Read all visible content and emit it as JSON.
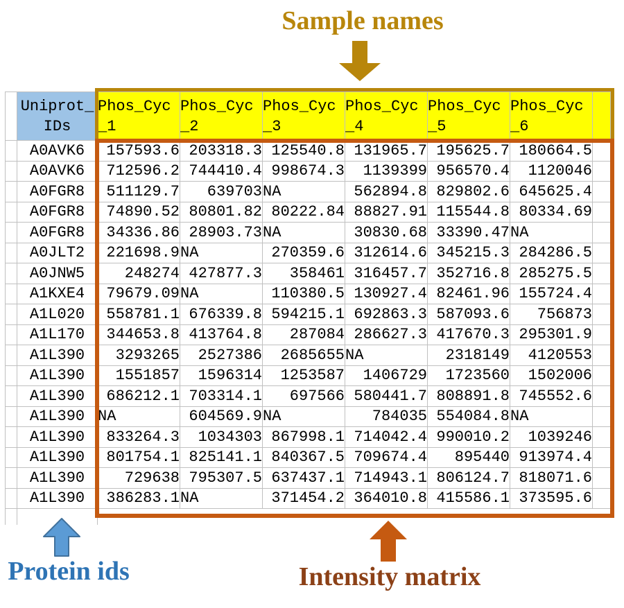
{
  "annotations": {
    "sample_names": {
      "label": "Sample names"
    },
    "protein_ids": {
      "label": "Protein ids"
    },
    "intensity_matrix": {
      "label": "Intensity matrix"
    }
  },
  "table": {
    "id_column_header": {
      "line1": "Uniprot_",
      "line2": "IDs"
    },
    "sample_column_headers": [
      {
        "line1": "Phos_Cyc",
        "line2": "_1"
      },
      {
        "line1": "Phos_Cyc",
        "line2": "_2"
      },
      {
        "line1": "Phos_Cyc",
        "line2": "_3"
      },
      {
        "line1": "Phos_Cyc",
        "line2": "_4"
      },
      {
        "line1": "Phos_Cyc",
        "line2": "_5"
      },
      {
        "line1": "Phos_Cyc",
        "line2": "_6"
      }
    ],
    "na_text": "NA",
    "rows": [
      {
        "id": "A0AVK6",
        "values": [
          "157593.6",
          "203318.3",
          "125540.8",
          "131965.7",
          "195625.7",
          "180664.5"
        ]
      },
      {
        "id": "A0AVK6",
        "values": [
          "712596.2",
          "744410.4",
          "998674.3",
          "1139399",
          "956570.4",
          "1120046"
        ]
      },
      {
        "id": "A0FGR8",
        "values": [
          "511129.7",
          "639703",
          "NA",
          "562894.8",
          "829802.6",
          "645625.4"
        ]
      },
      {
        "id": "A0FGR8",
        "values": [
          "74890.52",
          "80801.82",
          "80222.84",
          "88827.91",
          "115544.8",
          "80334.69"
        ]
      },
      {
        "id": "A0FGR8",
        "values": [
          "34336.86",
          "28903.73",
          "NA",
          "30830.68",
          "33390.47",
          "NA"
        ]
      },
      {
        "id": "A0JLT2",
        "values": [
          "221698.9",
          "NA",
          "270359.6",
          "312614.6",
          "345215.3",
          "284286.5"
        ]
      },
      {
        "id": "A0JNW5",
        "values": [
          "248274",
          "427877.3",
          "358461",
          "316457.7",
          "352716.8",
          "285275.5"
        ]
      },
      {
        "id": "A1KXE4",
        "values": [
          "79679.09",
          "NA",
          "110380.5",
          "130927.4",
          "82461.96",
          "155724.4"
        ]
      },
      {
        "id": "A1L020",
        "values": [
          "558781.1",
          "676339.8",
          "594215.1",
          "692863.3",
          "587093.6",
          "756873"
        ]
      },
      {
        "id": "A1L170",
        "values": [
          "344653.8",
          "413764.8",
          "287084",
          "286627.3",
          "417670.3",
          "295301.9"
        ]
      },
      {
        "id": "A1L390",
        "values": [
          "3293265",
          "2527386",
          "2685655",
          "NA",
          "2318149",
          "4120553"
        ]
      },
      {
        "id": "A1L390",
        "values": [
          "1551857",
          "1596314",
          "1253587",
          "1406729",
          "1723560",
          "1502006"
        ]
      },
      {
        "id": "A1L390",
        "values": [
          "686212.1",
          "703314.1",
          "697566",
          "580441.7",
          "808891.8",
          "745552.6"
        ]
      },
      {
        "id": "A1L390",
        "values": [
          "NA",
          "604569.9",
          "NA",
          "784035",
          "554084.8",
          "NA"
        ]
      },
      {
        "id": "A1L390",
        "values": [
          "833264.3",
          "1034303",
          "867998.1",
          "714042.4",
          "990010.2",
          "1039246"
        ]
      },
      {
        "id": "A1L390",
        "values": [
          "801754.1",
          "825141.1",
          "840367.5",
          "709674.4",
          "895440",
          "913974.4"
        ]
      },
      {
        "id": "A1L390",
        "values": [
          "729638",
          "795307.5",
          "637437.1",
          "714943.1",
          "806124.7",
          "818071.6"
        ]
      },
      {
        "id": "A1L390",
        "values": [
          "386283.1",
          "NA",
          "371454.2",
          "364010.8",
          "415586.1",
          "373595.6"
        ]
      }
    ]
  },
  "colors": {
    "gold": "#B8860B",
    "header_yellow": "#FFFF00",
    "id_header_blue": "#9DC3E6",
    "matrix_orange": "#C55A11",
    "protein_label_blue": "#2E74B5",
    "protein_arrow_blue": "#5B9BD5",
    "protein_arrow_border": "#41719C",
    "intensity_label_brown": "#8C4117",
    "grid_line": "#C0C0C0"
  }
}
